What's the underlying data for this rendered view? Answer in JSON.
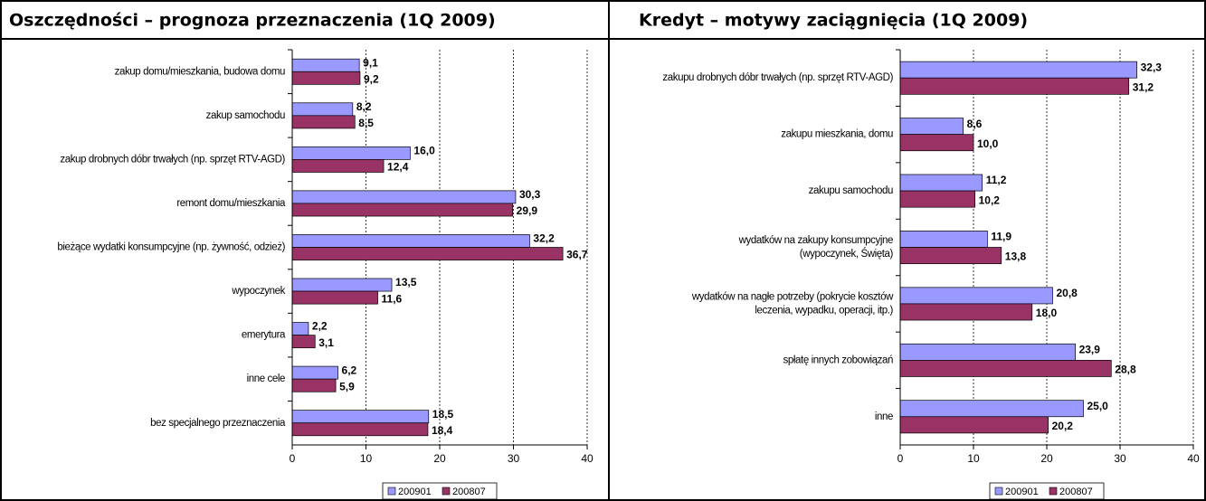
{
  "chart_data": [
    {
      "type": "bar",
      "orientation": "horizontal",
      "title": "Oszczędności – prognoza przeznaczenia (1Q 2009)",
      "categories": [
        [
          "zakup domu/mieszkania, budowa domu"
        ],
        [
          "zakup samochodu"
        ],
        [
          "zakup drobnych dóbr trwałych (np. sprzęt RTV-AGD)"
        ],
        [
          "remont domu/mieszkania"
        ],
        [
          "bieżące wydatki konsumpcyjne (np. żywność, odzież)"
        ],
        [
          "wypoczynek"
        ],
        [
          "emerytura"
        ],
        [
          "inne cele"
        ],
        [
          "bez specjalnego przeznaczenia"
        ]
      ],
      "series": [
        {
          "name": "200901",
          "color": "#9999ff",
          "values": [
            9.1,
            8.2,
            16.0,
            30.3,
            32.2,
            13.5,
            2.2,
            6.2,
            18.5
          ],
          "value_labels": [
            "9,1",
            "8,2",
            "16,0",
            "30,3",
            "32,2",
            "13,5",
            "2,2",
            "6,2",
            "18,5"
          ]
        },
        {
          "name": "200807",
          "color": "#993366",
          "values": [
            9.2,
            8.5,
            12.4,
            29.9,
            36.7,
            11.6,
            3.1,
            5.9,
            18.4
          ],
          "value_labels": [
            "9,2",
            "8,5",
            "12,4",
            "29,9",
            "36,7",
            "11,6",
            "3,1",
            "5,9",
            "18,4"
          ]
        }
      ],
      "xlim": [
        0,
        40
      ],
      "xticks": [
        0,
        10,
        20,
        30,
        40
      ],
      "grid": true,
      "legend": "bottom"
    },
    {
      "type": "bar",
      "orientation": "horizontal",
      "title": "Kredyt – motywy zaciągnięcia (1Q 2009)",
      "categories": [
        [
          "zakupu drobnych dóbr trwałych (np. sprzęt RTV-AGD)"
        ],
        [
          "zakupu mieszkania, domu"
        ],
        [
          "zakupu samochodu"
        ],
        [
          "wydatków na zakupy konsumpcyjne",
          "(wypoczynek, Święta)"
        ],
        [
          "wydatków na nagłe potrzeby (pokrycie kosztów",
          "leczenia, wypadku, operacji, itp.)"
        ],
        [
          "spłatę innych zobowiązań"
        ],
        [
          "inne"
        ]
      ],
      "series": [
        {
          "name": "200901",
          "color": "#9999ff",
          "values": [
            32.3,
            8.6,
            11.2,
            11.9,
            20.8,
            23.9,
            25.0
          ],
          "value_labels": [
            "32,3",
            "8,6",
            "11,2",
            "11,9",
            "20,8",
            "23,9",
            "25,0"
          ]
        },
        {
          "name": "200807",
          "color": "#993366",
          "values": [
            31.2,
            10.0,
            10.2,
            13.8,
            18.0,
            28.8,
            20.2
          ],
          "value_labels": [
            "31,2",
            "10,0",
            "10,2",
            "13,8",
            "18,0",
            "28,8",
            "20,2"
          ]
        }
      ],
      "xlim": [
        0,
        40
      ],
      "xticks": [
        0,
        10,
        20,
        30,
        40
      ],
      "grid": true,
      "legend": "bottom"
    }
  ]
}
